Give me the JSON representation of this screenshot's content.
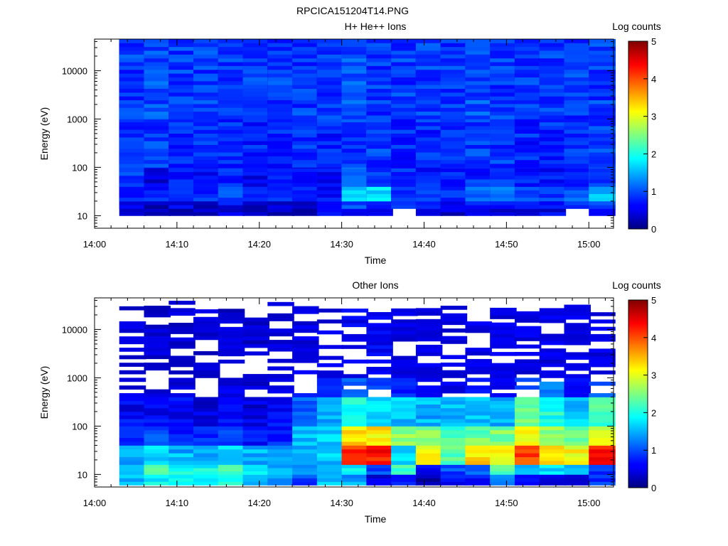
{
  "figure_title": "RPCICA151204T14.PNG",
  "chart_data": [
    {
      "type": "heatmap",
      "title": "H+ He++ Ions",
      "xlabel": "Time",
      "ylabel": "Energy (eV)",
      "yscale": "log",
      "ylim": [
        5.5,
        45000
      ],
      "xlim": [
        "14:00",
        "15:03"
      ],
      "xticks": [
        "14:00",
        "14:10",
        "14:20",
        "14:30",
        "14:40",
        "14:50",
        "15:00"
      ],
      "yticks": [
        "10",
        "100",
        "1000",
        "10000"
      ],
      "colorbar": {
        "label": "Log counts",
        "range": [
          0,
          5
        ],
        "ticks": [
          "0",
          "1",
          "2",
          "3",
          "4",
          "5"
        ]
      },
      "time_columns": [
        "14:03",
        "14:06",
        "14:09",
        "14:12",
        "14:15",
        "14:18",
        "14:21",
        "14:24",
        "14:27",
        "14:30",
        "14:33",
        "14:36",
        "14:39",
        "14:42",
        "14:45",
        "14:48",
        "14:51",
        "14:54",
        "14:57",
        "15:00"
      ],
      "energy_bands": [
        {
          "band": "10-14 eV",
          "log_counts": [
            0.4,
            0.2,
            0.3,
            0.3,
            0.4,
            0.2,
            0.3,
            0.3,
            0.6,
            0.6,
            0.5,
            null,
            0.5,
            0.4,
            0.6,
            0.4,
            0.4,
            0.5,
            null,
            0.5
          ]
        },
        {
          "band": "14-20 eV",
          "log_counts": [
            0.6,
            0.3,
            0.5,
            0.4,
            0.6,
            0.3,
            0.4,
            0.5,
            0.7,
            0.9,
            0.9,
            0.8,
            0.7,
            0.6,
            0.8,
            0.7,
            0.8,
            0.7,
            0.7,
            1.1
          ]
        },
        {
          "band": "20-40 eV",
          "log_counts": [
            0.8,
            0.7,
            0.8,
            0.8,
            0.9,
            0.7,
            0.7,
            0.8,
            0.7,
            1.6,
            1.7,
            0.9,
            0.9,
            0.9,
            1.1,
            1.2,
            1.0,
            0.9,
            1.0,
            1.6
          ]
        },
        {
          "band": "40-100 eV",
          "log_counts": [
            0.9,
            0.5,
            0.7,
            0.7,
            0.8,
            0.6,
            0.7,
            0.6,
            0.6,
            1.1,
            0.9,
            0.8,
            0.7,
            0.7,
            0.8,
            0.9,
            0.8,
            0.7,
            0.8,
            1.0
          ]
        },
        {
          "band": "100-1000 eV",
          "log_counts": [
            0.9,
            0.9,
            0.8,
            0.9,
            0.8,
            0.8,
            0.8,
            0.9,
            0.8,
            0.9,
            0.9,
            0.8,
            0.8,
            0.8,
            0.9,
            0.9,
            0.8,
            0.8,
            0.8,
            0.9
          ]
        },
        {
          "band": "1000-45000 eV",
          "log_counts": [
            0.9,
            1.0,
            0.9,
            0.9,
            0.9,
            0.9,
            0.9,
            0.9,
            0.9,
            1.0,
            0.9,
            0.9,
            0.9,
            0.9,
            1.0,
            0.9,
            0.9,
            0.9,
            0.9,
            0.9
          ]
        }
      ]
    },
    {
      "type": "heatmap",
      "title": "Other Ions",
      "xlabel": "Time",
      "ylabel": "Energy (eV)",
      "yscale": "log",
      "ylim": [
        5.5,
        45000
      ],
      "xlim": [
        "14:00",
        "15:03"
      ],
      "xticks": [
        "14:00",
        "14:10",
        "14:20",
        "14:30",
        "14:40",
        "14:50",
        "15:00"
      ],
      "yticks": [
        "10",
        "100",
        "1000",
        "10000"
      ],
      "colorbar": {
        "label": "Log counts",
        "range": [
          0,
          5
        ],
        "ticks": [
          "0",
          "1",
          "2",
          "3",
          "4",
          "5"
        ]
      },
      "time_columns": [
        "14:03",
        "14:06",
        "14:09",
        "14:12",
        "14:15",
        "14:18",
        "14:21",
        "14:24",
        "14:27",
        "14:30",
        "14:33",
        "14:36",
        "14:39",
        "14:42",
        "14:45",
        "14:48",
        "14:51",
        "14:54",
        "14:57",
        "15:00"
      ],
      "energy_bands": [
        {
          "band": "6-10 eV",
          "log_counts": [
            1.6,
            1.9,
            1.8,
            1.7,
            2.0,
            1.5,
            1.4,
            0.9,
            1.6,
            1.4,
            0.4,
            0.7,
            0.2,
            0.6,
            0.7,
            1.2,
            0.8,
            0.5,
            0.6,
            0.8
          ]
        },
        {
          "band": "10-16 eV",
          "log_counts": [
            1.7,
            2.2,
            2.0,
            1.9,
            2.1,
            1.7,
            1.5,
            1.4,
            1.6,
            1.8,
            0.9,
            2.2,
            0.7,
            1.0,
            1.0,
            2.2,
            1.6,
            1.7,
            1.5,
            0.9
          ]
        },
        {
          "band": "16-40 eV",
          "log_counts": [
            1.4,
            1.7,
            1.5,
            1.4,
            1.6,
            1.5,
            1.3,
            1.5,
            1.6,
            4.1,
            4.3,
            1.8,
            3.1,
            2.3,
            3.3,
            3.1,
            4.0,
            3.2,
            3.1,
            4.3
          ]
        },
        {
          "band": "40-100 eV",
          "log_counts": [
            0.8,
            0.9,
            0.8,
            0.8,
            0.9,
            0.7,
            0.8,
            1.5,
            1.6,
            3.3,
            3.2,
            2.6,
            2.5,
            2.2,
            2.4,
            2.5,
            3.0,
            2.6,
            2.4,
            3.0
          ]
        },
        {
          "band": "100-400 eV",
          "log_counts": [
            0.6,
            0.6,
            0.6,
            0.5,
            0.6,
            0.5,
            0.6,
            1.1,
            1.4,
            1.9,
            1.8,
            1.6,
            1.5,
            1.5,
            1.6,
            1.5,
            2.5,
            2.0,
            1.6,
            2.2
          ]
        },
        {
          "band": "400-1000 eV",
          "log_counts": [
            0.4,
            0.4,
            0.4,
            0.4,
            0.4,
            0.3,
            0.4,
            0.6,
            0.8,
            1.0,
            0.9,
            0.7,
            0.5,
            0.4,
            0.6,
            0.5,
            0.8,
            1.2,
            0.5,
            0.9
          ]
        },
        {
          "band": "1000-40000 eV",
          "log_counts": [
            0.3,
            0.3,
            0.3,
            0.3,
            0.3,
            0.3,
            0.3,
            0.4,
            0.4,
            0.5,
            0.5,
            0.4,
            0.4,
            0.4,
            0.4,
            0.4,
            0.4,
            0.4,
            0.4,
            0.4
          ]
        }
      ]
    }
  ]
}
